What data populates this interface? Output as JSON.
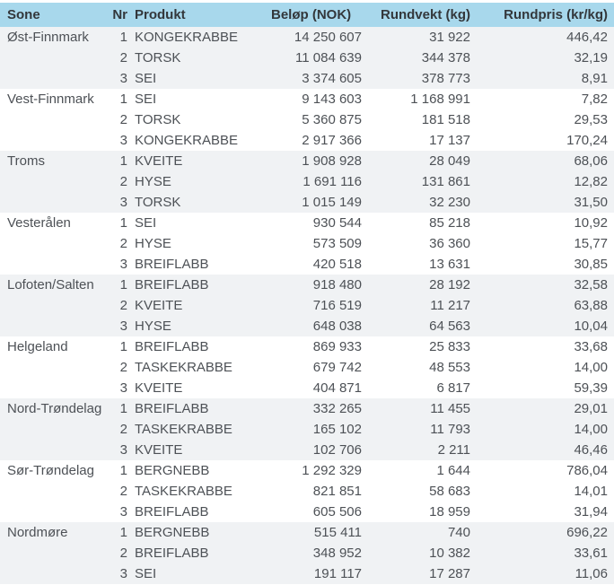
{
  "colors": {
    "header_bg": "#a8d8ec",
    "stripe_bg": "#f0f2f4",
    "header_text": "#33373b",
    "text": "#4d5156"
  },
  "chart_data": {
    "type": "table",
    "columns": [
      "Sone",
      "Nr",
      "Produkt",
      "Beløp (NOK)",
      "Rundvekt (kg)",
      "Rundpris (kr/kg)"
    ],
    "groups": [
      {
        "sone": "Øst-Finnmark",
        "rows": [
          {
            "nr": "1",
            "produkt": "KONGEKRABBE",
            "belop": "14 250 607",
            "rundvekt": "31 922",
            "rundpris": "446,42"
          },
          {
            "nr": "2",
            "produkt": "TORSK",
            "belop": "11 084 639",
            "rundvekt": "344 378",
            "rundpris": "32,19"
          },
          {
            "nr": "3",
            "produkt": "SEI",
            "belop": "3 374 605",
            "rundvekt": "378 773",
            "rundpris": "8,91"
          }
        ]
      },
      {
        "sone": "Vest-Finnmark",
        "rows": [
          {
            "nr": "1",
            "produkt": "SEI",
            "belop": "9 143 603",
            "rundvekt": "1 168 991",
            "rundpris": "7,82"
          },
          {
            "nr": "2",
            "produkt": "TORSK",
            "belop": "5 360 875",
            "rundvekt": "181 518",
            "rundpris": "29,53"
          },
          {
            "nr": "3",
            "produkt": "KONGEKRABBE",
            "belop": "2 917 366",
            "rundvekt": "17 137",
            "rundpris": "170,24"
          }
        ]
      },
      {
        "sone": "Troms",
        "rows": [
          {
            "nr": "1",
            "produkt": "KVEITE",
            "belop": "1 908 928",
            "rundvekt": "28 049",
            "rundpris": "68,06"
          },
          {
            "nr": "2",
            "produkt": "HYSE",
            "belop": "1 691 116",
            "rundvekt": "131 861",
            "rundpris": "12,82"
          },
          {
            "nr": "3",
            "produkt": "TORSK",
            "belop": "1 015 149",
            "rundvekt": "32 230",
            "rundpris": "31,50"
          }
        ]
      },
      {
        "sone": "Vesterålen",
        "rows": [
          {
            "nr": "1",
            "produkt": "SEI",
            "belop": "930 544",
            "rundvekt": "85 218",
            "rundpris": "10,92"
          },
          {
            "nr": "2",
            "produkt": "HYSE",
            "belop": "573 509",
            "rundvekt": "36 360",
            "rundpris": "15,77"
          },
          {
            "nr": "3",
            "produkt": "BREIFLABB",
            "belop": "420 518",
            "rundvekt": "13 631",
            "rundpris": "30,85"
          }
        ]
      },
      {
        "sone": "Lofoten/Salten",
        "rows": [
          {
            "nr": "1",
            "produkt": "BREIFLABB",
            "belop": "918 480",
            "rundvekt": "28 192",
            "rundpris": "32,58"
          },
          {
            "nr": "2",
            "produkt": "KVEITE",
            "belop": "716 519",
            "rundvekt": "11 217",
            "rundpris": "63,88"
          },
          {
            "nr": "3",
            "produkt": "HYSE",
            "belop": "648 038",
            "rundvekt": "64 563",
            "rundpris": "10,04"
          }
        ]
      },
      {
        "sone": "Helgeland",
        "rows": [
          {
            "nr": "1",
            "produkt": "BREIFLABB",
            "belop": "869 933",
            "rundvekt": "25 833",
            "rundpris": "33,68"
          },
          {
            "nr": "2",
            "produkt": "TASKEKRABBE",
            "belop": "679 742",
            "rundvekt": "48 553",
            "rundpris": "14,00"
          },
          {
            "nr": "3",
            "produkt": "KVEITE",
            "belop": "404 871",
            "rundvekt": "6 817",
            "rundpris": "59,39"
          }
        ]
      },
      {
        "sone": "Nord-Trøndelag",
        "rows": [
          {
            "nr": "1",
            "produkt": "BREIFLABB",
            "belop": "332 265",
            "rundvekt": "11 455",
            "rundpris": "29,01"
          },
          {
            "nr": "2",
            "produkt": "TASKEKRABBE",
            "belop": "165 102",
            "rundvekt": "11 793",
            "rundpris": "14,00"
          },
          {
            "nr": "3",
            "produkt": "KVEITE",
            "belop": "102 706",
            "rundvekt": "2 211",
            "rundpris": "46,46"
          }
        ]
      },
      {
        "sone": "Sør-Trøndelag",
        "rows": [
          {
            "nr": "1",
            "produkt": "BERGNEBB",
            "belop": "1 292 329",
            "rundvekt": "1 644",
            "rundpris": "786,04"
          },
          {
            "nr": "2",
            "produkt": "TASKEKRABBE",
            "belop": "821 851",
            "rundvekt": "58 683",
            "rundpris": "14,01"
          },
          {
            "nr": "3",
            "produkt": "BREIFLABB",
            "belop": "605 506",
            "rundvekt": "18 959",
            "rundpris": "31,94"
          }
        ]
      },
      {
        "sone": "Nordmøre",
        "rows": [
          {
            "nr": "1",
            "produkt": "BERGNEBB",
            "belop": "515 411",
            "rundvekt": "740",
            "rundpris": "696,22"
          },
          {
            "nr": "2",
            "produkt": "BREIFLABB",
            "belop": "348 952",
            "rundvekt": "10 382",
            "rundpris": "33,61"
          },
          {
            "nr": "3",
            "produkt": "SEI",
            "belop": "191 117",
            "rundvekt": "17 287",
            "rundpris": "11,06"
          }
        ]
      }
    ]
  }
}
